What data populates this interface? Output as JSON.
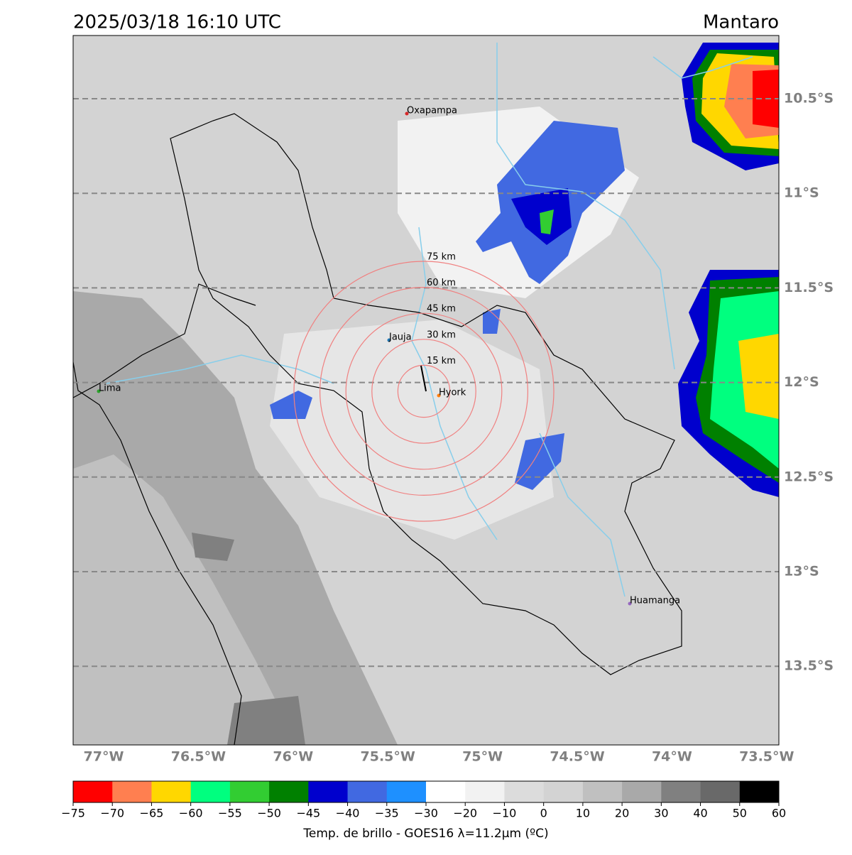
{
  "header": {
    "title": "2025/03/18 16:10 UTC",
    "region": "Mantaro"
  },
  "lat_labels": [
    "10.5°S",
    "11°S",
    "11.5°S",
    "12°S",
    "12.5°S",
    "13°S",
    "13.5°S"
  ],
  "lon_labels": [
    "77°W",
    "76.5°W",
    "76°W",
    "75.5°W",
    "75°W",
    "74.5°W",
    "74°W",
    "73.5°W"
  ],
  "cities": [
    {
      "name": "Oxapampa",
      "color": "#d62728"
    },
    {
      "name": "Jauja",
      "color": "#1f77b4"
    },
    {
      "name": "Hyork",
      "color": "#ff7f0e"
    },
    {
      "name": "Lima",
      "color": "#2ca02c"
    },
    {
      "name": "Huamanga",
      "color": "#9467bd"
    }
  ],
  "rings": [
    "15 km",
    "30 km",
    "45 km",
    "60 km",
    "75 km"
  ],
  "colorbar": {
    "ticks": [
      "−75",
      "−70",
      "−65",
      "−60",
      "−55",
      "−50",
      "−45",
      "−40",
      "−35",
      "−30",
      "−20",
      "−10",
      "0",
      "10",
      "20",
      "30",
      "40",
      "50",
      "60"
    ],
    "colors": [
      "#ff0000",
      "#ff7f50",
      "#ffd700",
      "#00ff7f",
      "#32cd32",
      "#008000",
      "#0000cd",
      "#4169e1",
      "#1e90ff",
      "#ffffff",
      "#f2f2f2",
      "#dcdcdc",
      "#d3d3d3",
      "#c0c0c0",
      "#a9a9a9",
      "#808080",
      "#696969",
      "#000000"
    ],
    "label": "Temp. de brillo - GOES16 λ=11.2μm (ºC)"
  }
}
